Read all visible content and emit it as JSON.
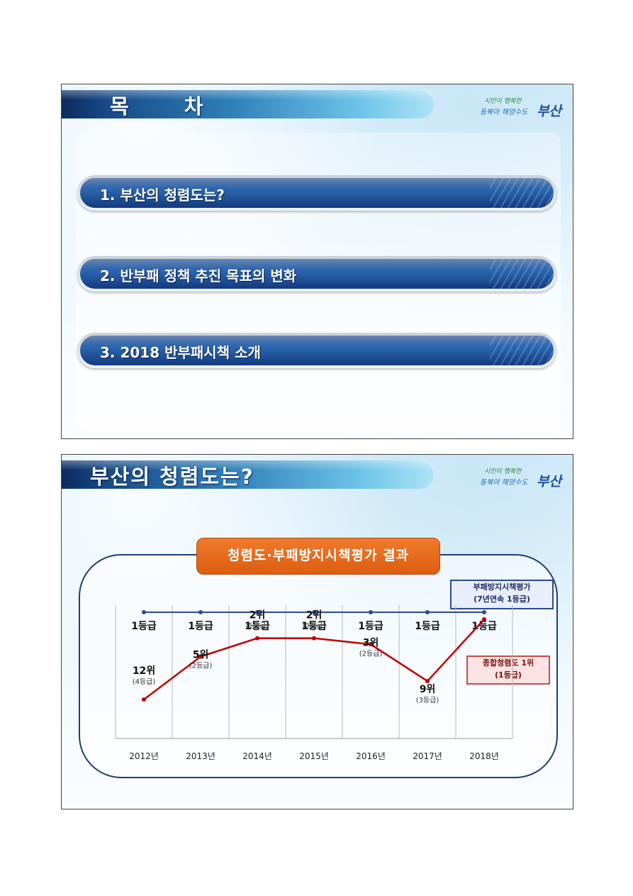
{
  "slide1": {
    "title": "목  차",
    "logo": {
      "line1": "시민이 행복한",
      "line2": "동북아 해양수도",
      "city": "부산"
    },
    "menu_items": [
      {
        "label": "1.  부산의 청렴도는?"
      },
      {
        "label": "2.  반부패 정책 추진 목표의 변화"
      },
      {
        "label": "3.  2018 반부패시책 소개"
      }
    ]
  },
  "slide2": {
    "title": "부산의 청렴도는?",
    "logo": {
      "line1": "시민이 행복한",
      "line2": "동북아 해양수도",
      "city": "부산"
    },
    "box_title": "청렴도·부패방지시책평가 결과",
    "note_blue": {
      "line1": "부패방지시책평가",
      "line2": "(7년연속 1등급)"
    },
    "note_red": {
      "line1": "종합청렴도 1위",
      "line2": "(1등급)"
    }
  },
  "chart_data": {
    "type": "line",
    "categories": [
      "2012년",
      "2013년",
      "2014년",
      "2015년",
      "2016년",
      "2017년",
      "2018년"
    ],
    "series": [
      {
        "name": "부패방지시책평가",
        "values": [
          1,
          1,
          1,
          1,
          1,
          1,
          1
        ],
        "labels": [
          "1등급",
          "1등급",
          "1등급",
          "1등급",
          "1등급",
          "1등급",
          "1등급"
        ],
        "color": "#2e4a8c"
      },
      {
        "name": "종합청렴도",
        "values": [
          12,
          5,
          2,
          2,
          3,
          9,
          1
        ],
        "labels": [
          "12위",
          "5위",
          "2위",
          "2위",
          "3위",
          "9위",
          ""
        ],
        "grades": [
          "(4등급)",
          "(2등급)",
          "(1등급)",
          "(2등급)",
          "(2등급)",
          "(3등급)",
          ""
        ],
        "color": "#c00000"
      }
    ]
  }
}
